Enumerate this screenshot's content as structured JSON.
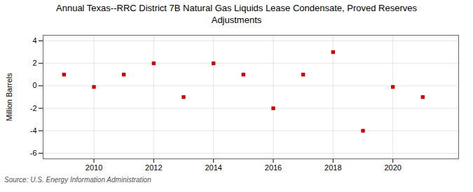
{
  "chart_data": {
    "type": "scatter",
    "title": "Annual Texas--RRC District 7B Natural Gas Liquids Lease Condensate, Proved Reserves\nAdjustments",
    "ylabel": "Million Barrels",
    "source": "Source: U.S. Energy Information Administration",
    "x": [
      2009,
      2010,
      2011,
      2012,
      2013,
      2014,
      2015,
      2016,
      2017,
      2018,
      2019,
      2020,
      2021
    ],
    "values": [
      1.0,
      -0.1,
      1.0,
      2.0,
      -1.0,
      2.0,
      1.0,
      -2.0,
      1.0,
      3.0,
      -4.0,
      -0.1,
      -1.0
    ],
    "color": "#CC0000",
    "marker": "square",
    "xlim": [
      2008.3,
      2022.2
    ],
    "xticks": [
      2010,
      2012,
      2014,
      2016,
      2018,
      2020
    ],
    "ylim": [
      -6.5,
      4.5
    ],
    "yticks": [
      -6,
      -4,
      -2,
      0,
      2,
      4
    ],
    "grid": true
  }
}
